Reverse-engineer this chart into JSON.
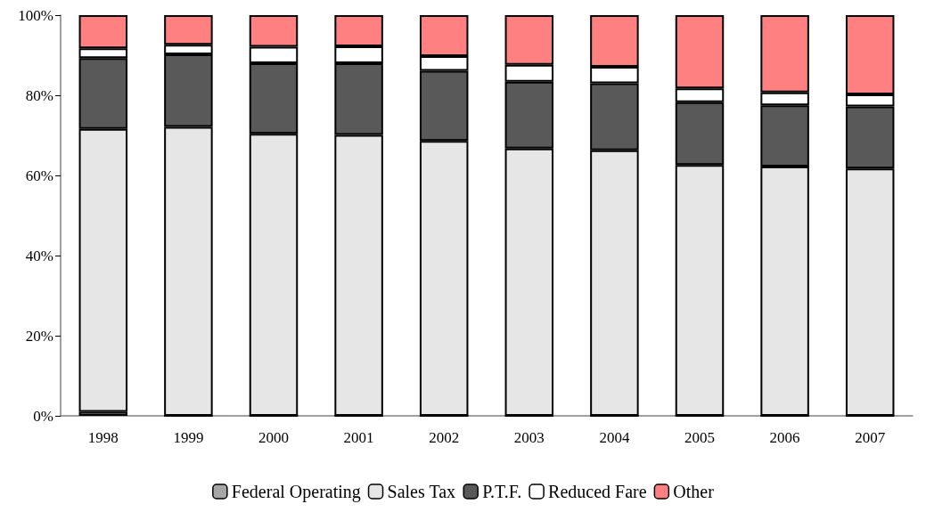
{
  "chart_data": {
    "type": "bar",
    "stacked": true,
    "categories": [
      "1998",
      "1999",
      "2000",
      "2001",
      "2002",
      "2003",
      "2004",
      "2005",
      "2006",
      "2007"
    ],
    "series": [
      {
        "name": "Federal Operating",
        "color": "#a6a6a6",
        "values": [
          1,
          0,
          0,
          0,
          0,
          0,
          0,
          0,
          0,
          0
        ]
      },
      {
        "name": "Sales Tax",
        "color": "#e6e6e6",
        "values": [
          70.6,
          72.1,
          70.4,
          70.1,
          68.6,
          66.7,
          66.3,
          62.6,
          62.2,
          61.7
        ]
      },
      {
        "name": "P.T.F.",
        "color": "#595959",
        "values": [
          17.7,
          18.1,
          17.6,
          17.9,
          17.5,
          16.7,
          16.7,
          15.7,
          15.3,
          15.5
        ]
      },
      {
        "name": "Reduced Fare",
        "color": "#ffffff",
        "values": [
          2.4,
          2.4,
          4.1,
          4.2,
          3.7,
          4.2,
          4.1,
          3.4,
          3.2,
          3.0
        ]
      },
      {
        "name": "Other",
        "color": "#ff8080",
        "values": [
          8.3,
          7.4,
          7.9,
          7.8,
          10.2,
          12.4,
          12.9,
          18.3,
          19.3,
          19.8
        ]
      }
    ],
    "ylim": [
      0,
      100
    ],
    "yticks": [
      {
        "value": 0,
        "label": "0%"
      },
      {
        "value": 20,
        "label": "20%"
      },
      {
        "value": 40,
        "label": "40%"
      },
      {
        "value": 60,
        "label": "60%"
      },
      {
        "value": 80,
        "label": "80%"
      },
      {
        "value": 100,
        "label": "100%"
      }
    ],
    "grid": false,
    "legend": "bottom"
  }
}
